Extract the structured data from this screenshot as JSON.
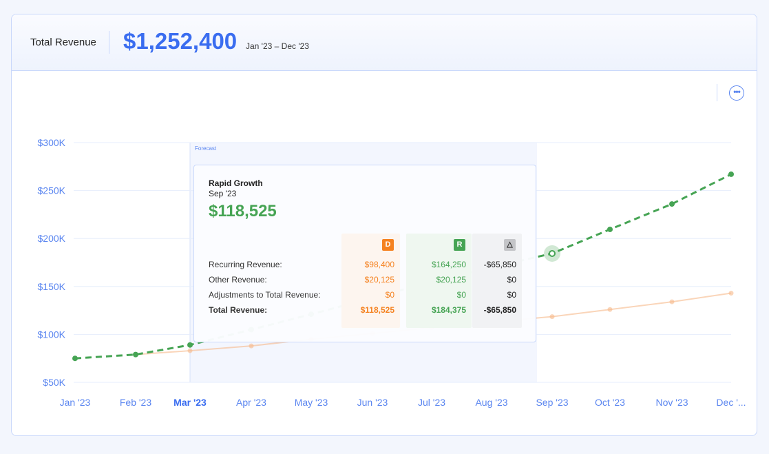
{
  "header": {
    "title": "Total Revenue",
    "total": "$1,252,400",
    "range": "Jan '23 – Dec '23"
  },
  "more_icon": "ellipsis-circle-icon",
  "chart_data": {
    "type": "line",
    "categories": [
      "Jan '23",
      "Feb '23",
      "Mar '23",
      "Apr '23",
      "May '23",
      "Jun '23",
      "Jul '23",
      "Aug '23",
      "Sep '23",
      "Oct '23",
      "Nov '23",
      "Dec '..."
    ],
    "highlight_category": "Mar '23",
    "ylim": [
      50000,
      300000
    ],
    "yticks": [
      50000,
      100000,
      150000,
      200000,
      250000,
      300000
    ],
    "ytick_labels": [
      "$50K",
      "$100K",
      "$150K",
      "$200K",
      "$250K",
      "$300K"
    ],
    "grid": true,
    "forecast_label": "Forecast",
    "forecast_start": "Mar '23",
    "series": [
      {
        "color": "#f7b98a",
        "style": "solid",
        "values": [
          null,
          79000,
          83000,
          88000,
          95000,
          101000,
          107000,
          113000,
          118525,
          126000,
          134000,
          143000
        ]
      },
      {
        "name": "Rapid Growth",
        "color": "#46a454",
        "style": "dashed",
        "values": [
          75000,
          79000,
          89000,
          105000,
          121000,
          138000,
          155000,
          170000,
          184375,
          209500,
          236000,
          267000
        ]
      }
    ],
    "active_category": "Sep '23"
  },
  "tooltip": {
    "scenario": "Rapid Growth",
    "date": "Sep '23",
    "value": "$118,525",
    "rows": [
      "Recurring Revenue:",
      "Other Revenue:",
      "Adjustments to Total Revenue:",
      "Total Revenue:"
    ],
    "columns": [
      {
        "badge": "D",
        "icon": "d-badge-icon",
        "color": "#f58220",
        "bg": "#fdf5ef",
        "values": [
          "$98,400",
          "$20,125",
          "$0",
          "$118,525"
        ]
      },
      {
        "badge": "R",
        "icon": "r-badge-icon",
        "color": "#46a454",
        "bg": "#eff7f0",
        "values": [
          "$164,250",
          "$20,125",
          "$0",
          "$184,375"
        ]
      },
      {
        "badge": "",
        "icon": "delta-icon",
        "color": "#222222",
        "bg": "#f1f2f4",
        "values": [
          "-$65,850",
          "$0",
          "$0",
          "-$65,850"
        ]
      }
    ]
  }
}
